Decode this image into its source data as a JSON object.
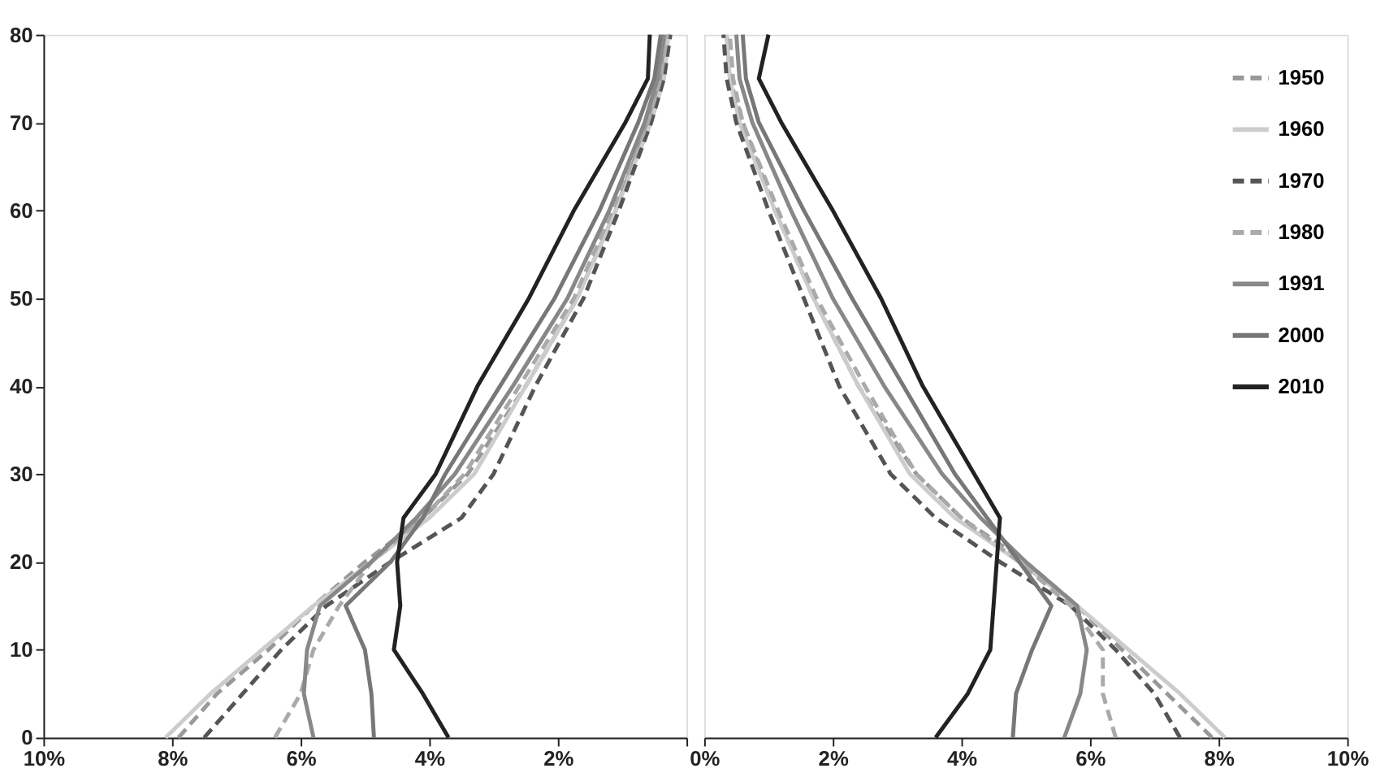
{
  "chart_data": [
    {
      "type": "line",
      "xlim": [
        10,
        0
      ],
      "ylim": [
        0,
        80
      ],
      "xticks": [
        {
          "value": 10,
          "label": "10%"
        },
        {
          "value": 8,
          "label": "8%"
        },
        {
          "value": 6,
          "label": "6%"
        },
        {
          "value": 4,
          "label": "4%"
        },
        {
          "value": 2,
          "label": "2%"
        },
        {
          "value": 0,
          "label": null
        }
      ],
      "yticks": [
        0,
        10,
        20,
        30,
        40,
        50,
        60,
        70,
        80
      ],
      "series": [
        {
          "color": "#999999",
          "line_style": "dashed",
          "x": [
            7.9,
            7.3,
            6.5,
            5.8,
            5.0,
            4.1,
            3.4,
            2.5,
            1.7,
            1.1,
            0.6,
            0.4,
            0.3
          ],
          "values": [
            0,
            5,
            10,
            15,
            20,
            25,
            30,
            40,
            50,
            60,
            70,
            75,
            80
          ]
        },
        {
          "color": "#cccccc",
          "line_style": "solid",
          "x": [
            8.1,
            7.4,
            6.6,
            5.8,
            4.9,
            4.0,
            3.3,
            2.5,
            1.7,
            1.1,
            0.55,
            0.35,
            0.28
          ],
          "values": [
            0,
            5,
            10,
            15,
            20,
            25,
            30,
            40,
            50,
            60,
            70,
            75,
            80
          ]
        },
        {
          "color": "#555555",
          "line_style": "dashed",
          "x": [
            7.5,
            6.9,
            6.3,
            5.6,
            4.6,
            3.5,
            3.0,
            2.35,
            1.6,
            1.05,
            0.55,
            0.35,
            0.25
          ],
          "values": [
            0,
            5,
            10,
            15,
            20,
            25,
            30,
            40,
            50,
            60,
            70,
            75,
            80
          ]
        },
        {
          "color": "#aaaaaa",
          "line_style": "dashed",
          "x": [
            6.4,
            6.0,
            5.8,
            5.4,
            4.9,
            4.1,
            3.45,
            2.6,
            1.75,
            1.15,
            0.6,
            0.4,
            0.3
          ],
          "values": [
            0,
            5,
            10,
            15,
            20,
            25,
            30,
            40,
            50,
            60,
            70,
            75,
            80
          ]
        },
        {
          "color": "#888888",
          "line_style": "solid",
          "x": [
            5.8,
            5.95,
            5.9,
            5.7,
            4.9,
            4.2,
            3.6,
            2.7,
            1.85,
            1.2,
            0.65,
            0.45,
            0.35
          ],
          "values": [
            0,
            5,
            10,
            15,
            20,
            25,
            30,
            40,
            50,
            60,
            70,
            75,
            80
          ]
        },
        {
          "color": "#777777",
          "line_style": "solid",
          "x": [
            4.86,
            4.9,
            5.0,
            5.3,
            4.6,
            4.1,
            3.75,
            2.9,
            2.05,
            1.35,
            0.75,
            0.5,
            0.4
          ],
          "values": [
            0,
            5,
            10,
            15,
            20,
            25,
            30,
            40,
            50,
            60,
            70,
            75,
            80
          ]
        },
        {
          "color": "#222222",
          "line_style": "solid",
          "x": [
            3.7,
            4.1,
            4.55,
            4.45,
            4.5,
            4.4,
            3.9,
            3.25,
            2.45,
            1.75,
            0.95,
            0.6,
            0.57
          ],
          "values": [
            0,
            5,
            10,
            15,
            20,
            25,
            30,
            40,
            50,
            60,
            70,
            75,
            80
          ]
        }
      ]
    },
    {
      "type": "line",
      "xlim": [
        0,
        10
      ],
      "ylim": [
        0,
        80
      ],
      "tick_labels": "x",
      "legend": "top right",
      "xticks": [
        {
          "value": 0,
          "label": "0%"
        },
        {
          "value": 2,
          "label": "2%"
        },
        {
          "value": 4,
          "label": "4%"
        },
        {
          "value": 6,
          "label": "6%"
        },
        {
          "value": 8,
          "label": "8%"
        },
        {
          "value": 10,
          "label": "10%"
        }
      ],
      "yticks": [
        0,
        10,
        20,
        30,
        40,
        50,
        60,
        70,
        80
      ],
      "series": [
        {
          "name": "1950",
          "color": "#999999",
          "line_style": "dashed",
          "x": [
            7.9,
            7.2,
            6.5,
            5.8,
            5.0,
            4.0,
            3.3,
            2.4,
            1.7,
            1.1,
            0.6,
            0.4,
            0.35
          ],
          "values": [
            0,
            5,
            10,
            15,
            20,
            25,
            30,
            40,
            50,
            60,
            70,
            75,
            80
          ]
        },
        {
          "name": "1960",
          "color": "#cccccc",
          "line_style": "solid",
          "x": [
            8.1,
            7.4,
            6.6,
            5.8,
            4.9,
            3.9,
            3.2,
            2.4,
            1.7,
            1.1,
            0.55,
            0.4,
            0.35
          ],
          "values": [
            0,
            5,
            10,
            15,
            20,
            25,
            30,
            40,
            50,
            60,
            70,
            75,
            80
          ]
        },
        {
          "name": "1970",
          "color": "#555555",
          "line_style": "dashed",
          "x": [
            7.4,
            7.0,
            6.4,
            5.7,
            4.6,
            3.6,
            2.9,
            2.1,
            1.55,
            1.0,
            0.5,
            0.35,
            0.3
          ],
          "values": [
            0,
            5,
            10,
            15,
            20,
            25,
            30,
            40,
            50,
            60,
            70,
            75,
            80
          ]
        },
        {
          "name": "1980",
          "color": "#aaaaaa",
          "line_style": "dashed",
          "x": [
            6.4,
            6.2,
            6.2,
            5.7,
            4.9,
            4.0,
            3.3,
            2.5,
            1.75,
            1.15,
            0.6,
            0.45,
            0.4
          ],
          "values": [
            0,
            5,
            10,
            15,
            20,
            25,
            30,
            40,
            50,
            60,
            70,
            75,
            80
          ]
        },
        {
          "name": "1991",
          "color": "#888888",
          "line_style": "solid",
          "x": [
            5.6,
            5.85,
            5.95,
            5.8,
            5.0,
            4.3,
            3.7,
            2.8,
            2.0,
            1.35,
            0.75,
            0.55,
            0.5
          ],
          "values": [
            0,
            5,
            10,
            15,
            20,
            25,
            30,
            40,
            50,
            60,
            70,
            75,
            80
          ]
        },
        {
          "name": "2000",
          "color": "#777777",
          "line_style": "solid",
          "x": [
            4.8,
            4.85,
            5.1,
            5.4,
            4.9,
            4.4,
            3.9,
            3.1,
            2.3,
            1.55,
            0.85,
            0.65,
            0.6
          ],
          "values": [
            0,
            5,
            10,
            15,
            20,
            25,
            30,
            40,
            50,
            60,
            70,
            75,
            80
          ]
        },
        {
          "name": "2010",
          "color": "#222222",
          "line_style": "solid",
          "x": [
            3.6,
            4.1,
            4.45,
            4.5,
            4.55,
            4.6,
            4.2,
            3.4,
            2.75,
            2.0,
            1.2,
            0.85,
            1.0
          ],
          "values": [
            0,
            5,
            10,
            15,
            20,
            25,
            30,
            40,
            50,
            60,
            70,
            75,
            80
          ]
        }
      ]
    }
  ]
}
